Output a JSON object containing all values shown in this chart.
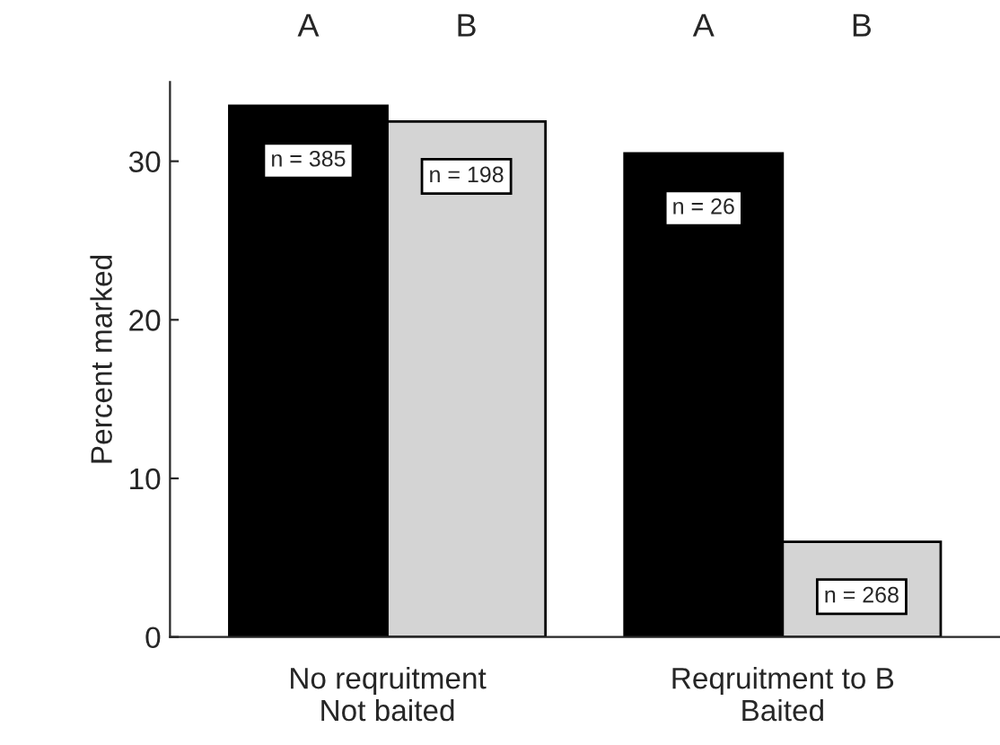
{
  "chart_data": {
    "type": "bar",
    "ylabel": "Percent marked",
    "categories": [
      "No reqruitment\nNot baited",
      "Reqruitment to B\nBaited"
    ],
    "series": [
      {
        "name": "A",
        "color": "#000000",
        "values": [
          33.5,
          30.5
        ]
      },
      {
        "name": "B",
        "color": "#d4d4d4",
        "values": [
          32.5,
          6.0
        ]
      }
    ],
    "annotations": [
      "n = 385",
      "n = 26",
      "n = 198",
      "n = 268"
    ],
    "ylim": [
      0,
      35
    ],
    "yticks": [
      0,
      10,
      20,
      30
    ],
    "grid": false,
    "legend": false
  }
}
